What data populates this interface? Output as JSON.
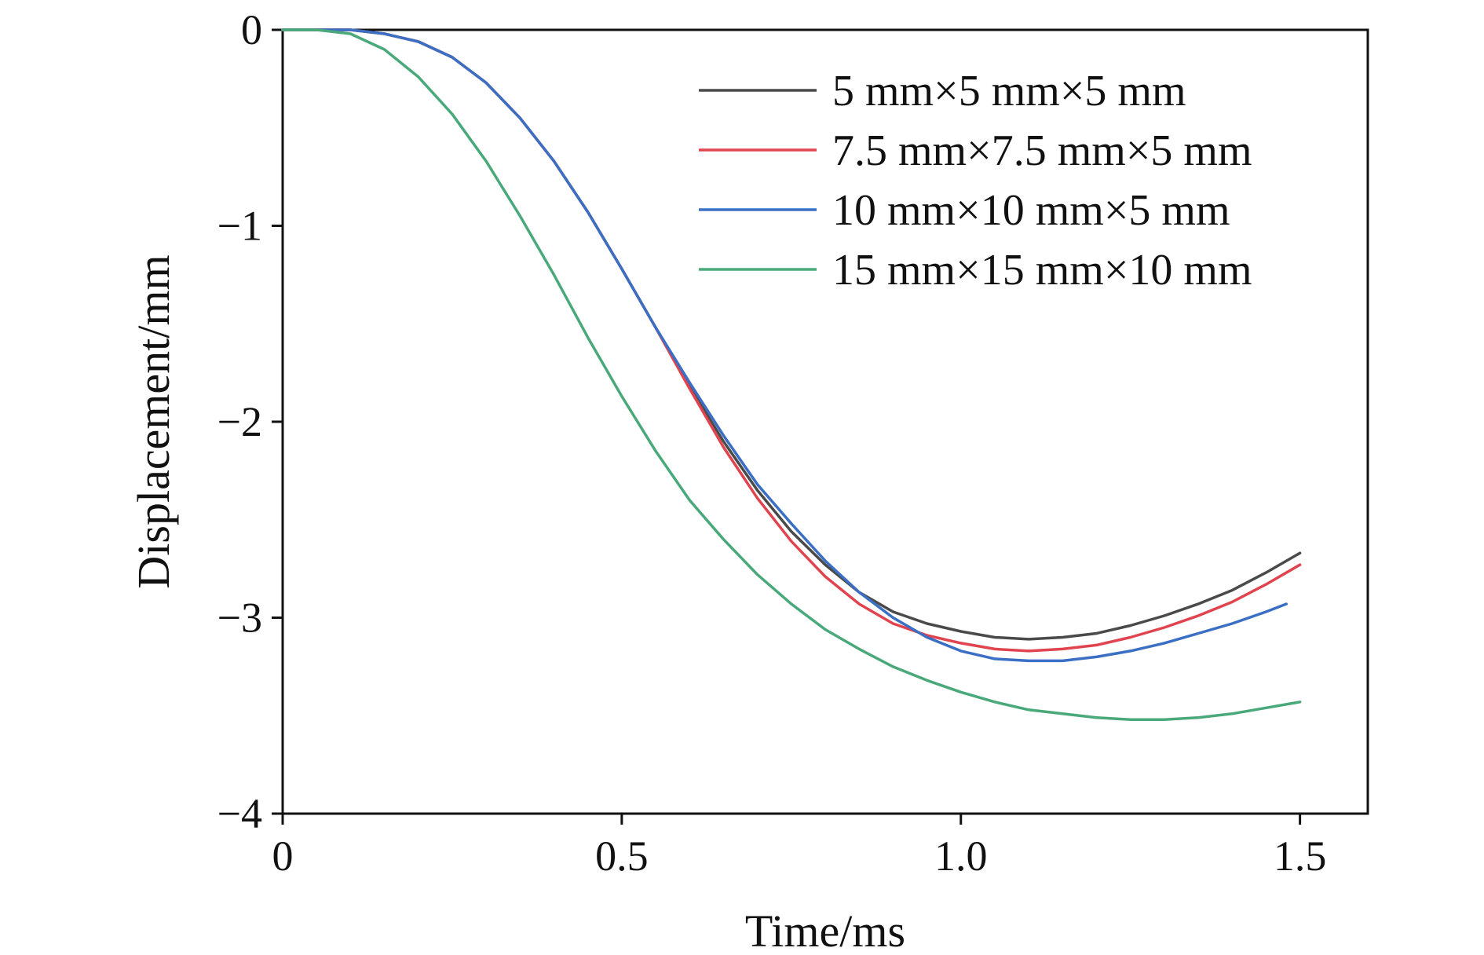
{
  "chart_data": {
    "type": "line",
    "title": "",
    "xlabel": "Time/ms",
    "ylabel": "Displacement/mm",
    "xlim": [
      0,
      1.6
    ],
    "ylim": [
      -4,
      0
    ],
    "xticks": [
      0,
      0.5,
      1.0,
      1.5
    ],
    "xtick_labels": [
      "0",
      "0.5",
      "1.0",
      "1.5"
    ],
    "yticks": [
      0,
      -1,
      -2,
      -3,
      -4
    ],
    "ytick_labels": [
      "0",
      "−1",
      "−2",
      "−3",
      "−4"
    ],
    "grid": false,
    "legend_position": "top-right",
    "series": [
      {
        "name": "5 mm×5 mm×5 mm",
        "color": "#4a4a4a",
        "x": [
          0,
          0.1,
          0.15,
          0.2,
          0.25,
          0.3,
          0.35,
          0.4,
          0.45,
          0.5,
          0.55,
          0.6,
          0.65,
          0.7,
          0.75,
          0.8,
          0.85,
          0.9,
          0.95,
          1.0,
          1.05,
          1.1,
          1.15,
          1.2,
          1.25,
          1.3,
          1.35,
          1.4,
          1.45,
          1.5
        ],
        "y": [
          0,
          0,
          -0.02,
          -0.06,
          -0.14,
          -0.27,
          -0.45,
          -0.67,
          -0.93,
          -1.22,
          -1.52,
          -1.82,
          -2.1,
          -2.35,
          -2.56,
          -2.73,
          -2.87,
          -2.97,
          -3.03,
          -3.07,
          -3.1,
          -3.11,
          -3.1,
          -3.08,
          -3.04,
          -2.99,
          -2.93,
          -2.86,
          -2.77,
          -2.67
        ]
      },
      {
        "name": "7.5 mm×7.5 mm×5 mm",
        "color": "#e0454f",
        "x": [
          0,
          0.1,
          0.15,
          0.2,
          0.25,
          0.3,
          0.35,
          0.4,
          0.45,
          0.5,
          0.55,
          0.6,
          0.65,
          0.7,
          0.75,
          0.8,
          0.85,
          0.9,
          0.95,
          1.0,
          1.05,
          1.1,
          1.15,
          1.2,
          1.25,
          1.3,
          1.35,
          1.4,
          1.45,
          1.5
        ],
        "y": [
          0,
          0,
          -0.02,
          -0.06,
          -0.14,
          -0.27,
          -0.45,
          -0.67,
          -0.93,
          -1.22,
          -1.52,
          -1.83,
          -2.13,
          -2.39,
          -2.61,
          -2.79,
          -2.93,
          -3.03,
          -3.09,
          -3.13,
          -3.16,
          -3.17,
          -3.16,
          -3.14,
          -3.1,
          -3.05,
          -2.99,
          -2.92,
          -2.83,
          -2.73
        ]
      },
      {
        "name": "10 mm×10 mm×5 mm",
        "color": "#3a6fc4",
        "x": [
          0,
          0.1,
          0.15,
          0.2,
          0.25,
          0.3,
          0.35,
          0.4,
          0.45,
          0.5,
          0.55,
          0.6,
          0.65,
          0.7,
          0.75,
          0.8,
          0.85,
          0.9,
          0.95,
          1.0,
          1.05,
          1.1,
          1.15,
          1.2,
          1.25,
          1.3,
          1.35,
          1.4,
          1.45,
          1.48
        ],
        "y": [
          0,
          0,
          -0.02,
          -0.06,
          -0.14,
          -0.27,
          -0.45,
          -0.67,
          -0.93,
          -1.22,
          -1.52,
          -1.8,
          -2.07,
          -2.32,
          -2.52,
          -2.71,
          -2.87,
          -3.0,
          -3.1,
          -3.17,
          -3.21,
          -3.22,
          -3.22,
          -3.2,
          -3.17,
          -3.13,
          -3.08,
          -3.03,
          -2.97,
          -2.93
        ]
      },
      {
        "name": "15 mm×15 mm×10 mm",
        "color": "#4aa97a",
        "x": [
          0,
          0.05,
          0.1,
          0.15,
          0.2,
          0.25,
          0.3,
          0.35,
          0.4,
          0.45,
          0.5,
          0.55,
          0.6,
          0.65,
          0.7,
          0.75,
          0.8,
          0.85,
          0.9,
          0.95,
          1.0,
          1.05,
          1.1,
          1.15,
          1.2,
          1.25,
          1.3,
          1.35,
          1.4,
          1.45,
          1.5
        ],
        "y": [
          0,
          0,
          -0.02,
          -0.1,
          -0.24,
          -0.43,
          -0.67,
          -0.95,
          -1.25,
          -1.57,
          -1.87,
          -2.15,
          -2.4,
          -2.6,
          -2.78,
          -2.93,
          -3.06,
          -3.16,
          -3.25,
          -3.32,
          -3.38,
          -3.43,
          -3.47,
          -3.49,
          -3.51,
          -3.52,
          -3.52,
          -3.51,
          -3.49,
          -3.46,
          -3.43
        ]
      }
    ]
  }
}
